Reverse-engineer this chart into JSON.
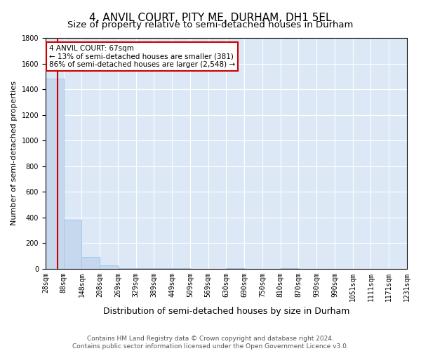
{
  "title": "4, ANVIL COURT, PITY ME, DURHAM, DH1 5EL",
  "subtitle": "Size of property relative to semi-detached houses in Durham",
  "xlabel": "Distribution of semi-detached houses by size in Durham",
  "ylabel": "Number of semi-detached properties",
  "property_size": 67,
  "property_label": "4 ANVIL COURT: 67sqm",
  "pct_smaller": 13,
  "pct_larger": 86,
  "count_smaller": 381,
  "count_larger": 2548,
  "bar_color": "#c5d8ed",
  "bar_edge_color": "#a8c8e8",
  "highlight_color": "#cc0000",
  "background_color": "#dce8f5",
  "bins": [
    28,
    88,
    148,
    208,
    269,
    329,
    389,
    449,
    509,
    569,
    630,
    690,
    750,
    810,
    870,
    930,
    990,
    1051,
    1111,
    1171,
    1231
  ],
  "counts": [
    1480,
    382,
    93,
    28,
    4,
    2,
    1,
    1,
    0,
    0,
    1,
    0,
    0,
    1,
    0,
    0,
    0,
    0,
    0,
    0
  ],
  "ylim": [
    0,
    1800
  ],
  "yticks": [
    0,
    200,
    400,
    600,
    800,
    1000,
    1200,
    1400,
    1600,
    1800
  ],
  "footer_line1": "Contains HM Land Registry data © Crown copyright and database right 2024.",
  "footer_line2": "Contains public sector information licensed under the Open Government Licence v3.0.",
  "title_fontsize": 11,
  "subtitle_fontsize": 9.5,
  "xlabel_fontsize": 9,
  "ylabel_fontsize": 8,
  "tick_fontsize": 7,
  "footer_fontsize": 6.5,
  "ann_fontsize": 7.5
}
